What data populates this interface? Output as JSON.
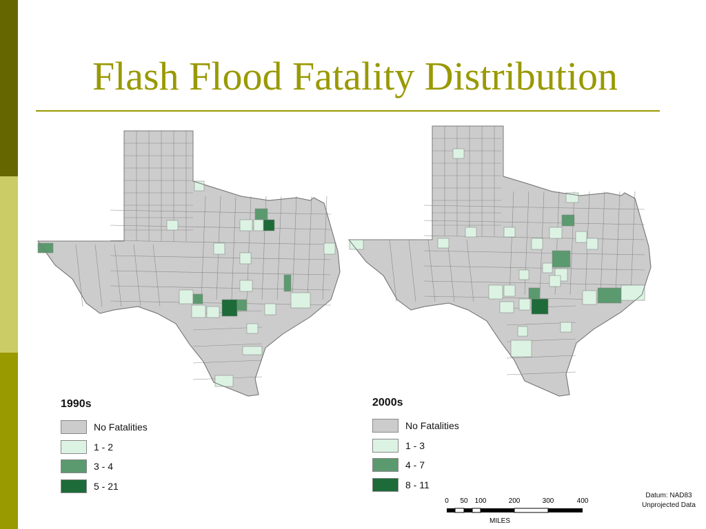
{
  "title": "Flash Flood Fatality Distribution",
  "colors": {
    "accent_dark": "#666600",
    "accent_light": "#cccc66",
    "accent": "#999900",
    "county_none": "#cccccc",
    "county_border": "#8a8a8a",
    "class_1": "#dcf3e4",
    "class_2": "#5b9a6e",
    "class_3": "#1d6b38"
  },
  "maps": [
    {
      "id": "1990s",
      "legend_title": "1990s",
      "classes": [
        {
          "label": "No Fatalities",
          "color": "#cccccc"
        },
        {
          "label": "1 - 2",
          "color": "#dcf3e4"
        },
        {
          "label": "3 - 4",
          "color": "#5b9a6e"
        },
        {
          "label": "5 - 21",
          "color": "#1d6b38"
        }
      ]
    },
    {
      "id": "2000s",
      "legend_title": "2000s",
      "classes": [
        {
          "label": "No Fatalities",
          "color": "#cccccc"
        },
        {
          "label": "1 - 3",
          "color": "#dcf3e4"
        },
        {
          "label": "4 - 7",
          "color": "#5b9a6e"
        },
        {
          "label": "8 - 11",
          "color": "#1d6b38"
        }
      ]
    }
  ],
  "scale_bar": {
    "ticks": [
      "0",
      "50",
      "100",
      "200",
      "300",
      "400"
    ],
    "unit": "MILES"
  },
  "datum": {
    "line1": "Datum: NAD83",
    "line2": "Unprojected Data"
  }
}
